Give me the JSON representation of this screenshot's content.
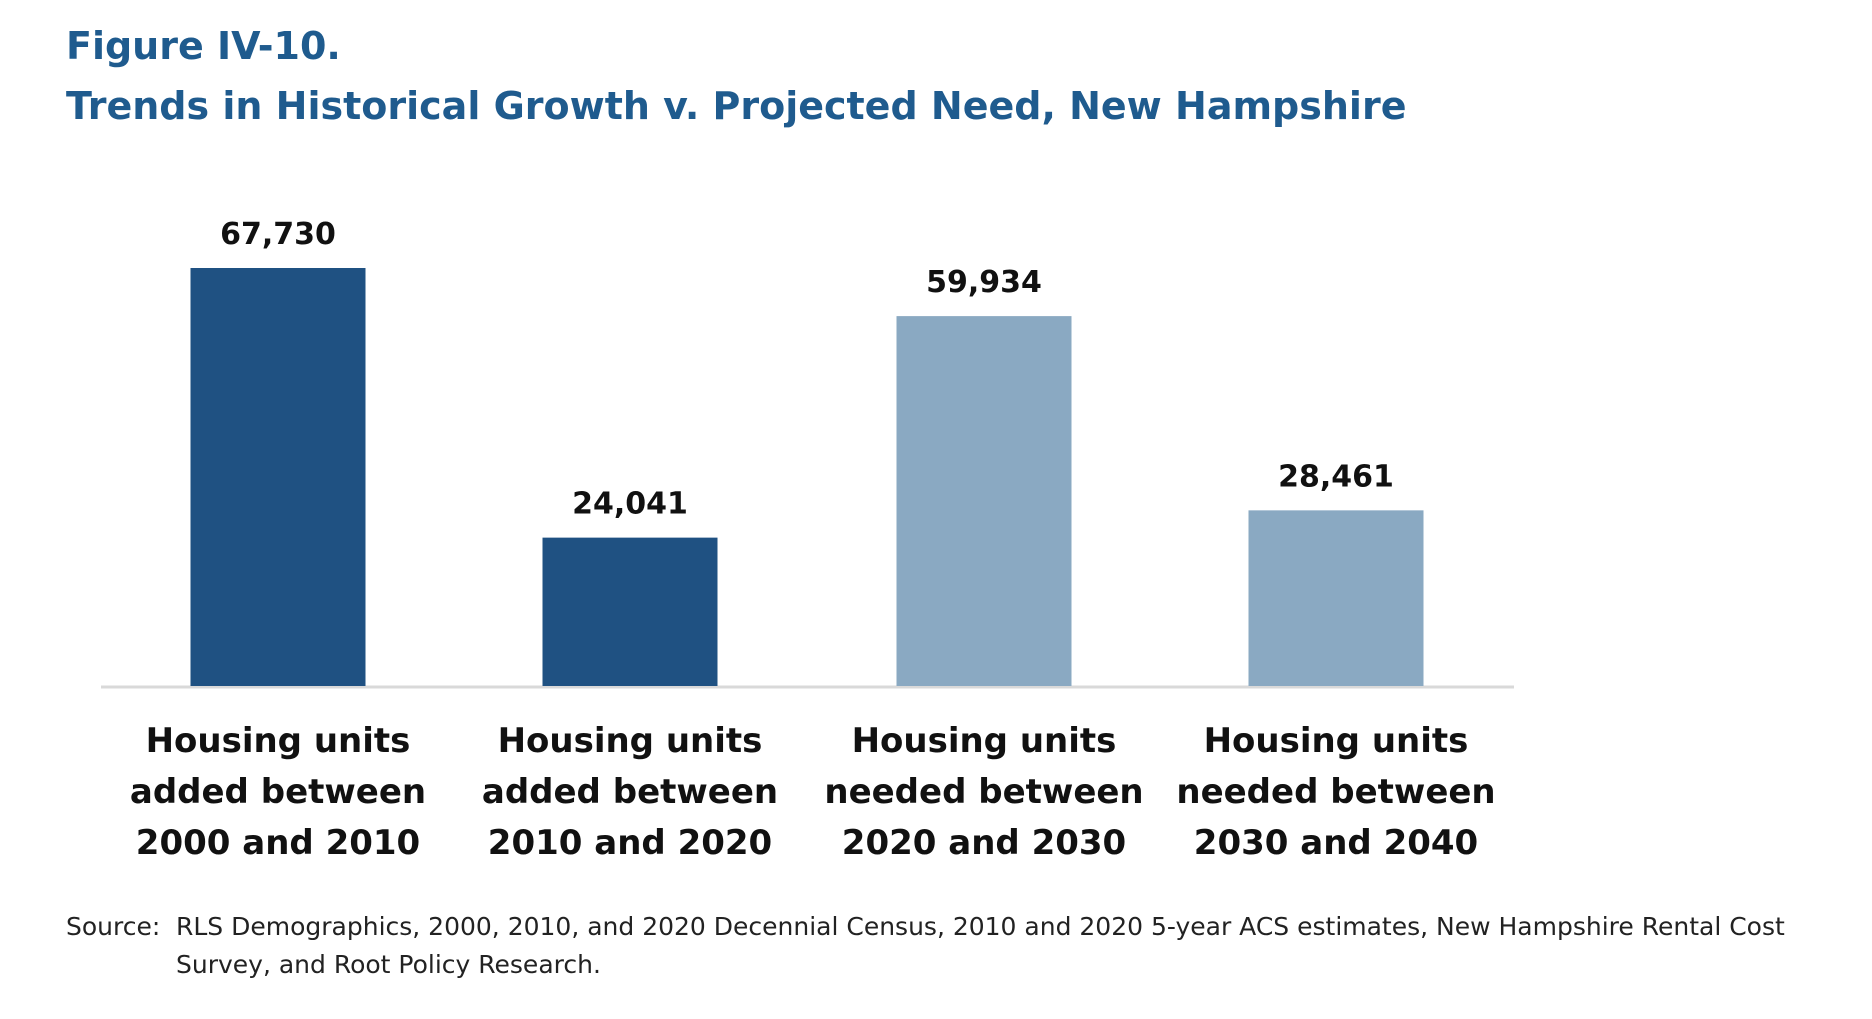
{
  "figure_label": "Figure IV-10.",
  "title": "Trends in Historical Growth v. Projected Need, New Hampshire",
  "source_label": "Source:",
  "source_line1": "RLS Demographics, 2000, 2010, and 2020 Decennial Census, 2010 and 2020 5-year ACS estimates, New Hampshire Rental Cost",
  "source_line2": "Survey, and Root Policy Research.",
  "chart_data": {
    "type": "bar",
    "categories": [
      [
        "Housing units",
        "added between",
        "2000 and 2010"
      ],
      [
        "Housing units",
        "added between",
        "2010 and 2020"
      ],
      [
        "Housing units",
        "needed between",
        "2020 and 2030"
      ],
      [
        "Housing units",
        "needed between",
        "2030 and 2040"
      ]
    ],
    "values": [
      67730,
      24041,
      59934,
      28461
    ],
    "data_labels": [
      "67,730",
      "24,041",
      "59,934",
      "28,461"
    ],
    "colors": [
      "#1f5182",
      "#1f5182",
      "#8aa9c2",
      "#8aa9c2"
    ],
    "ylim": [
      0,
      67730
    ],
    "grid": false,
    "xlabel": "",
    "ylabel": ""
  }
}
